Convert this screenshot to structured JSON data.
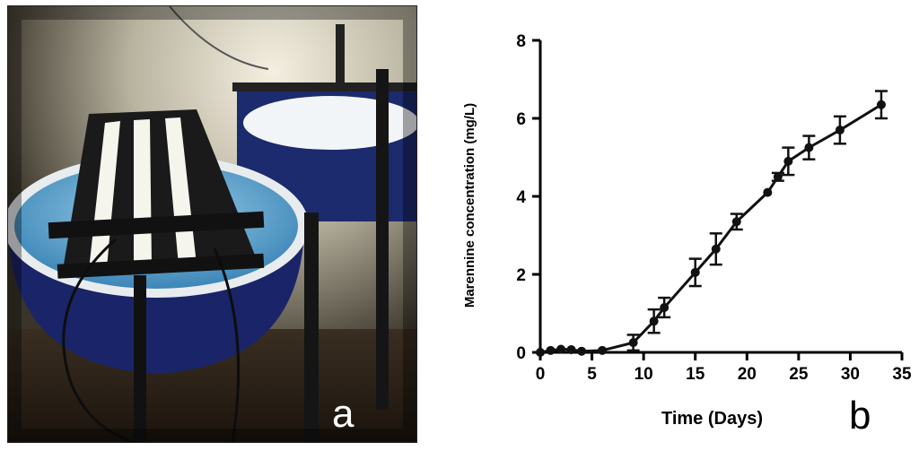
{
  "panels": {
    "a_label": "a",
    "b_label": "b"
  },
  "photo": {
    "description_icon": "marennine-culture-tank-photo-icon"
  },
  "chart_data": {
    "type": "line",
    "title": "",
    "xlabel": "Time (Days)",
    "ylabel": "Marennine concentration (mg/L)",
    "xlim": [
      0,
      35
    ],
    "ylim": [
      0,
      8
    ],
    "xticks": [
      0,
      5,
      10,
      15,
      20,
      25,
      30,
      35
    ],
    "yticks": [
      0,
      2,
      4,
      6,
      8
    ],
    "grid": false,
    "legend": "none",
    "color": "#111111",
    "series": [
      {
        "x": [
          0,
          1,
          2,
          3,
          4,
          6,
          9,
          11,
          12,
          15,
          17,
          19,
          22,
          23,
          24,
          26,
          29,
          33
        ],
        "y": [
          0.0,
          0.05,
          0.08,
          0.07,
          0.03,
          0.05,
          0.25,
          0.8,
          1.15,
          2.05,
          2.65,
          3.35,
          4.1,
          4.5,
          4.9,
          5.25,
          5.7,
          6.35
        ],
        "err": [
          0.0,
          0.03,
          0.04,
          0.03,
          0.02,
          0.03,
          0.2,
          0.3,
          0.25,
          0.35,
          0.4,
          0.2,
          0.05,
          0.1,
          0.35,
          0.3,
          0.35,
          0.35
        ]
      }
    ]
  }
}
